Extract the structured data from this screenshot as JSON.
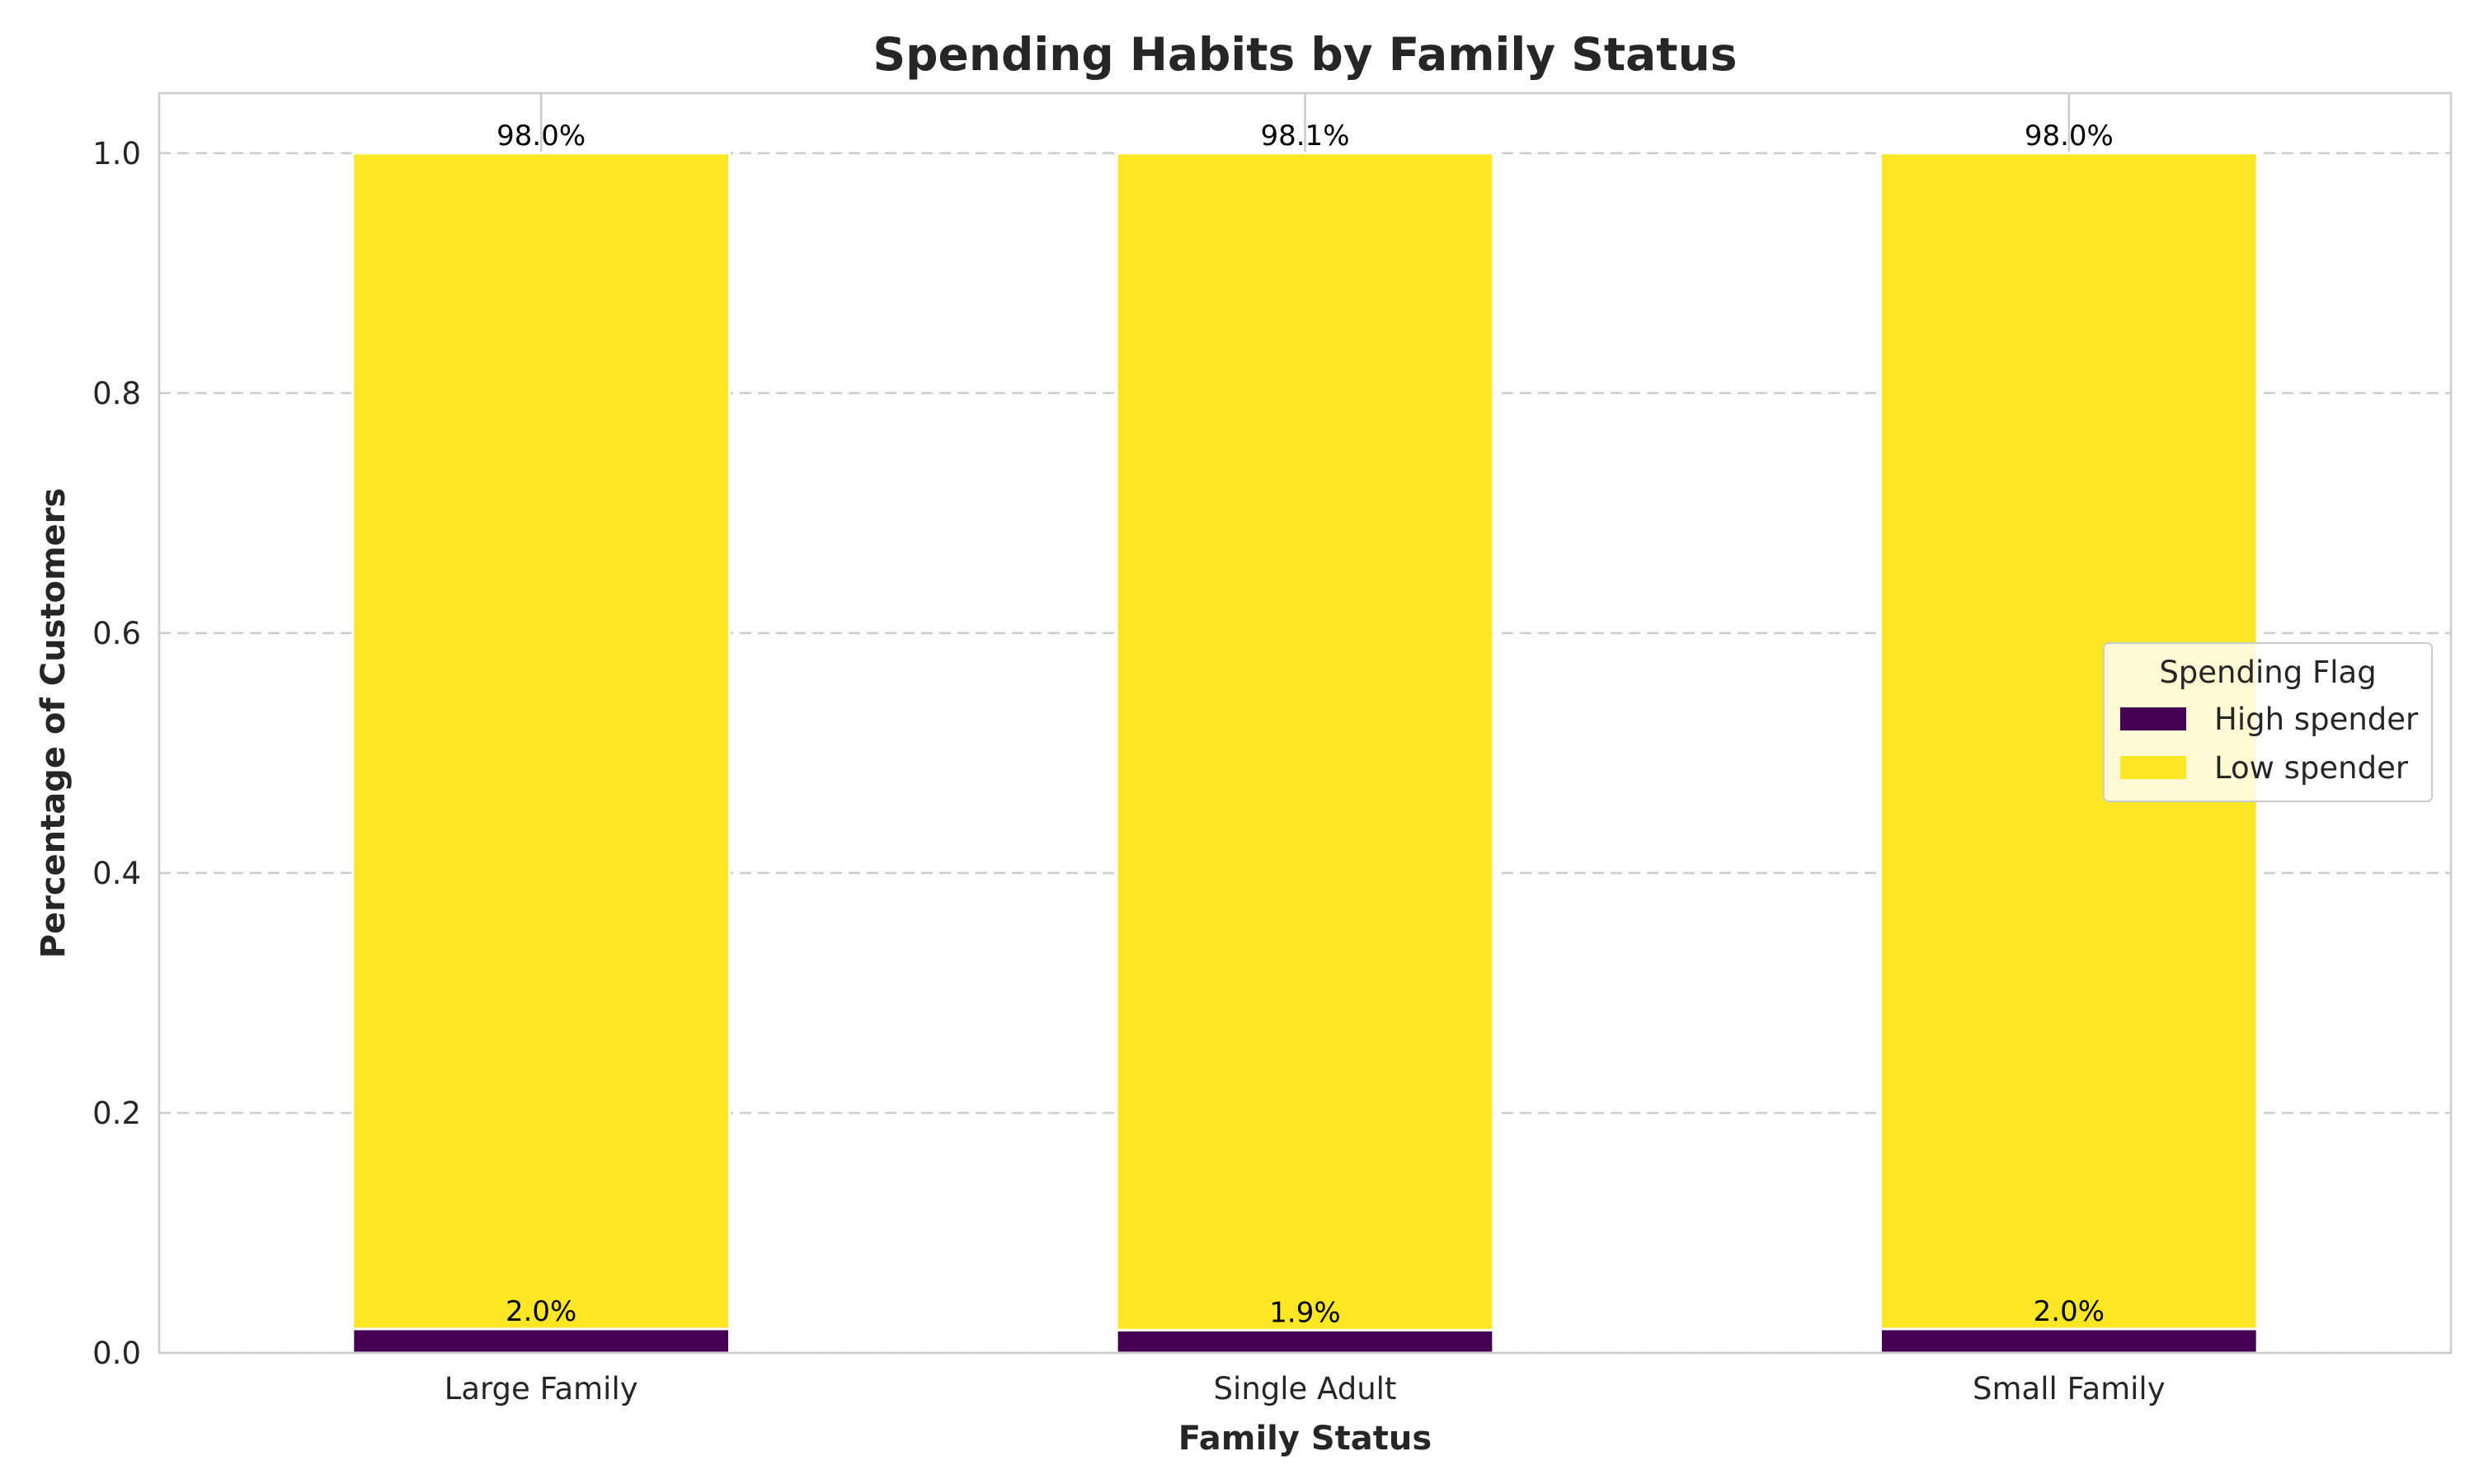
{
  "chart_data": {
    "type": "bar",
    "stacked": true,
    "title": "Spending Habits by Family Status",
    "xlabel": "Family Status",
    "ylabel": "Percentage of Customers",
    "categories": [
      "Large Family",
      "Single Adult",
      "Small Family"
    ],
    "series": [
      {
        "name": "High spender",
        "color": "#440154",
        "values": [
          0.02,
          0.019,
          0.02
        ],
        "labels": [
          "2.0%",
          "1.9%",
          "2.0%"
        ]
      },
      {
        "name": "Low spender",
        "color": "#fde725",
        "values": [
          0.98,
          0.981,
          0.98
        ],
        "labels": [
          "98.0%",
          "98.1%",
          "98.0%"
        ]
      }
    ],
    "ylim": [
      0,
      1.05
    ],
    "yticks": [
      0.0,
      0.2,
      0.4,
      0.6,
      0.8,
      1.0
    ],
    "ytick_labels": [
      "0.0",
      "0.2",
      "0.4",
      "0.6",
      "0.8",
      "1.0"
    ],
    "grid": {
      "y": true,
      "x": true,
      "y_style": "dashed"
    },
    "legend": {
      "title": "Spending Flag",
      "placement": "center-right",
      "entries": [
        "High spender",
        "Low spender"
      ]
    }
  }
}
